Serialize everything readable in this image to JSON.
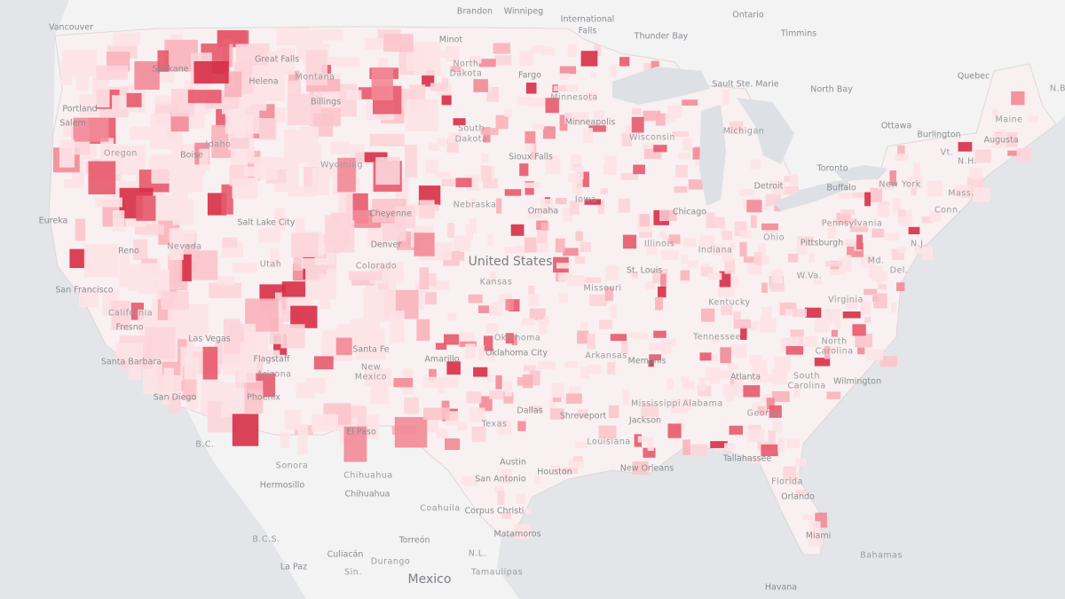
{
  "map": {
    "labels": [
      "Brandon",
      "Winnipeg",
      "International",
      "Falls",
      "Ontario",
      "Thunder Bay",
      "Timmins",
      "Vancouver",
      "Minot",
      "North",
      "Dakota",
      "Spokane",
      "Great Falls",
      "Helena",
      "Montana",
      "Fargo",
      "Minnesota",
      "Sault Ste. Marie",
      "North Bay",
      "Quebec",
      "Portland",
      "Salem",
      "Billings",
      "Minneapolis",
      "South",
      "Dakota",
      "Wisconsin",
      "Ottawa",
      "Burlington",
      "Maine",
      "Augusta",
      "Idaho",
      "Oregon",
      "Boise",
      "Sioux Falls",
      "Michigan",
      "Wyoming",
      "Toronto",
      "Vt.",
      "N.H.",
      "Detroit",
      "Buffalo",
      "New York",
      "Mass.",
      "Iowa",
      "Chicago",
      "Cheyenne",
      "Nebraska",
      "Omaha",
      "Pennsylvania",
      "Conn.",
      "Eureka",
      "Salt Lake City",
      "Illinois",
      "Indiana",
      "Ohio",
      "Pittsburgh",
      "N.J.",
      "Nevada",
      "Denver",
      "Reno",
      "Colorado",
      "Utah",
      "United States",
      "St. Louis",
      "Md.",
      "Del.",
      "San Francisco",
      "Kansas",
      "W.Va.",
      "Missouri",
      "Kentucky",
      "Virginia",
      "California",
      "Fresno",
      "Las Vegas",
      "Tennessee",
      "Oklahoma",
      "North",
      "Carolina",
      "Santa Fe",
      "Oklahoma City",
      "Arkansas",
      "Memphis",
      "Santa Barbara",
      "Flagstaff",
      "Amarillo",
      "New",
      "Mexico",
      "Arizona",
      "South",
      "Carolina",
      "Atlanta",
      "Wilmington",
      "San Diego",
      "Phoenix",
      "Mississippi",
      "Alabama",
      "Dallas",
      "Georgia",
      "Shreveport",
      "Jackson",
      "Texas",
      "El Paso",
      "B.C.",
      "Louisiana",
      "Tallahassee",
      "Sonora",
      "Austin",
      "New Orleans",
      "Houston",
      "Chihuahua",
      "Hermosillo",
      "San Antonio",
      "Chihuahua",
      "Florida",
      "Orlando",
      "Coahuila",
      "Corpus Christi",
      "Matamoros",
      "Miami",
      "B.C.S.",
      "Torreón",
      "Culiacán",
      "N.L.",
      "Bahamas",
      "Durango",
      "La Paz",
      "Sin.",
      "Tamaulipas",
      "Mexico",
      "Havana",
      "N.B"
    ]
  }
}
